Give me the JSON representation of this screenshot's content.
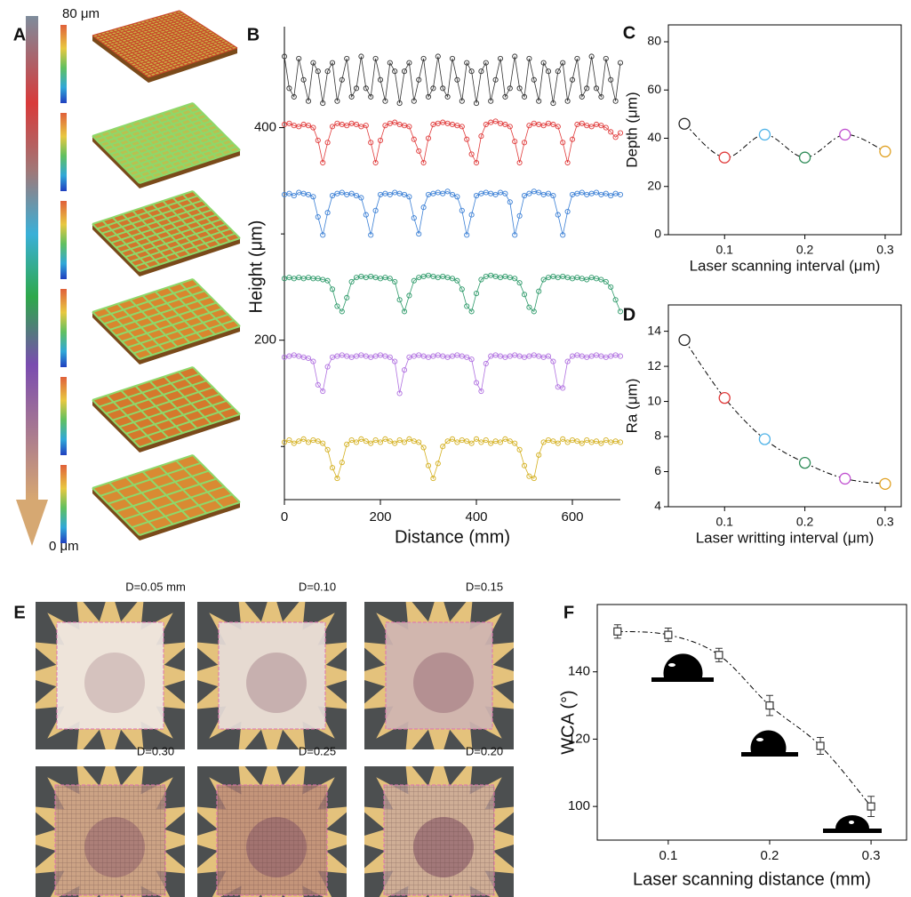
{
  "panel_labels": [
    "A",
    "B",
    "C",
    "D",
    "E",
    "F"
  ],
  "panel_a": {
    "top_label": "80 μm",
    "bottom_label": "0 μm"
  },
  "panel_e": {
    "labels": [
      "D=0.05 mm",
      "D=0.10",
      "D=0.15",
      "D=0.30",
      "D=0.25",
      "D=0.20"
    ]
  },
  "chart_data": [
    {
      "type": "line",
      "markers": "open-circle",
      "xlabel": "Distance (mm)",
      "ylabel": "Height (μm)",
      "x": [
        0,
        10,
        20,
        30,
        40,
        50,
        60,
        70,
        80,
        90,
        100,
        110,
        120,
        130,
        140,
        150,
        160,
        170,
        180,
        190,
        200,
        210,
        220,
        230,
        240,
        250,
        260,
        270,
        280,
        290,
        300,
        310,
        320,
        330,
        340,
        350,
        360,
        370,
        380,
        390,
        400,
        410,
        420,
        430,
        440,
        450,
        460,
        470,
        480,
        490,
        500,
        510,
        520,
        530,
        540,
        550,
        560,
        570,
        580,
        590,
        600,
        610,
        620,
        630,
        640,
        650,
        660,
        670,
        680,
        690,
        700
      ],
      "series": [
        {
          "color": "#333333",
          "values": [
            467,
            437,
            429,
            465,
            445,
            425,
            461,
            453,
            423,
            453,
            461,
            425,
            445,
            465,
            429,
            437,
            467,
            437,
            429,
            465,
            445,
            425,
            461,
            453,
            423,
            453,
            461,
            425,
            445,
            465,
            429,
            437,
            467,
            437,
            429,
            465,
            445,
            425,
            461,
            453,
            423,
            453,
            461,
            425,
            445,
            465,
            429,
            437,
            467,
            437,
            429,
            465,
            445,
            425,
            461,
            453,
            423,
            453,
            461,
            425,
            445,
            465,
            429,
            437,
            467,
            437,
            429,
            465,
            445,
            425,
            461
          ]
        },
        {
          "color": "#e03a3a",
          "values": [
            403,
            404,
            402,
            401,
            403,
            402,
            400,
            388,
            367,
            386,
            401,
            404,
            403,
            402,
            404,
            403,
            401,
            402,
            386,
            367,
            388,
            402,
            404,
            405,
            403,
            402,
            401,
            389,
            378,
            367,
            390,
            403,
            404,
            405,
            404,
            403,
            402,
            401,
            389,
            375,
            367,
            392,
            403,
            405,
            406,
            404,
            403,
            401,
            387,
            367,
            386,
            402,
            404,
            403,
            402,
            404,
            403,
            401,
            386,
            367,
            389,
            403,
            404,
            402,
            401,
            403,
            402,
            400,
            396,
            391,
            395
          ]
        },
        {
          "color": "#3a7fd5",
          "values": [
            337,
            338,
            336,
            339,
            338,
            337,
            335,
            316,
            299,
            320,
            336,
            338,
            339,
            337,
            338,
            336,
            334,
            318,
            299,
            322,
            337,
            338,
            337,
            339,
            338,
            337,
            335,
            315,
            300,
            325,
            337,
            338,
            339,
            338,
            340,
            337,
            335,
            322,
            299,
            318,
            336,
            338,
            339,
            338,
            337,
            339,
            338,
            330,
            299,
            317,
            336,
            338,
            340,
            339,
            337,
            338,
            336,
            318,
            299,
            321,
            337,
            338,
            339,
            337,
            338,
            339,
            337,
            338,
            336,
            338,
            337
          ]
        },
        {
          "color": "#2e9a6a",
          "values": [
            258,
            259,
            258,
            259,
            258,
            259,
            258,
            258,
            257,
            256,
            248,
            232,
            227,
            240,
            255,
            259,
            260,
            259,
            260,
            259,
            258,
            259,
            258,
            255,
            238,
            227,
            242,
            256,
            259,
            260,
            261,
            260,
            259,
            260,
            259,
            258,
            256,
            248,
            232,
            227,
            244,
            257,
            260,
            261,
            260,
            259,
            260,
            259,
            258,
            254,
            243,
            231,
            227,
            246,
            257,
            259,
            260,
            259,
            260,
            259,
            258,
            259,
            258,
            257,
            259,
            258,
            257,
            255,
            250,
            238,
            227
          ]
        },
        {
          "color": "#b070e0",
          "values": [
            184,
            185,
            186,
            185,
            184,
            183,
            180,
            158,
            152,
            175,
            184,
            185,
            186,
            185,
            184,
            185,
            186,
            185,
            184,
            185,
            186,
            185,
            184,
            180,
            150,
            172,
            184,
            185,
            186,
            185,
            184,
            185,
            186,
            185,
            184,
            185,
            186,
            185,
            184,
            182,
            160,
            152,
            178,
            185,
            186,
            185,
            184,
            185,
            186,
            185,
            184,
            185,
            186,
            185,
            184,
            185,
            180,
            156,
            155,
            180,
            185,
            186,
            185,
            184,
            185,
            186,
            185,
            184,
            185,
            186,
            185
          ]
        },
        {
          "color": "#d4b020",
          "values": [
            104,
            106,
            103,
            105,
            107,
            104,
            106,
            105,
            103,
            97,
            80,
            70,
            85,
            102,
            106,
            104,
            107,
            105,
            103,
            106,
            104,
            107,
            105,
            103,
            106,
            104,
            107,
            105,
            104,
            99,
            82,
            70,
            84,
            100,
            105,
            107,
            104,
            106,
            105,
            103,
            107,
            104,
            106,
            103,
            105,
            104,
            107,
            105,
            103,
            97,
            82,
            72,
            70,
            92,
            104,
            106,
            105,
            103,
            107,
            104,
            106,
            105,
            103,
            106,
            104,
            105,
            103,
            106,
            104,
            105,
            104
          ]
        }
      ],
      "xlim": [
        0,
        700
      ],
      "ylim": [
        50,
        495
      ],
      "xticks": [
        0,
        200,
        400,
        600
      ],
      "yticks": [
        200,
        400
      ],
      "yminorticks": [
        100,
        300
      ]
    },
    {
      "type": "scatter",
      "marker": "circle",
      "xlabel": "Laser scanning interval (μm)",
      "ylabel": "Depth (μm)",
      "x": [
        0.05,
        0.1,
        0.15,
        0.2,
        0.25,
        0.3
      ],
      "values": [
        46,
        32,
        41.5,
        32,
        41.5,
        34.5
      ],
      "colors": [
        "#222222",
        "#e03a3a",
        "#4fb3e8",
        "#2e8b57",
        "#c050d0",
        "#e0a020"
      ],
      "xlim": [
        0.03,
        0.32
      ],
      "ylim": [
        0,
        87
      ],
      "xticks": [
        0.1,
        0.2,
        0.3
      ],
      "yticks": [
        0,
        20,
        40,
        60,
        80
      ]
    },
    {
      "type": "scatter",
      "marker": "circle",
      "xlabel": "Laser writting interval (μm)",
      "ylabel": "Ra (μm)",
      "x": [
        0.05,
        0.1,
        0.15,
        0.2,
        0.25,
        0.3
      ],
      "values": [
        13.5,
        10.2,
        7.85,
        6.5,
        5.6,
        5.3
      ],
      "colors": [
        "#222222",
        "#e03a3a",
        "#4fb3e8",
        "#2e8b57",
        "#c050d0",
        "#e0a020"
      ],
      "xlim": [
        0.03,
        0.32
      ],
      "ylim": [
        4,
        15.5
      ],
      "xticks": [
        0.1,
        0.2,
        0.3
      ],
      "yticks": [
        4,
        6,
        8,
        10,
        12,
        14
      ]
    },
    {
      "type": "scatter",
      "marker": "square",
      "xlabel": "Laser scanning distance (mm)",
      "ylabel": "WCA (°)",
      "x": [
        0.05,
        0.1,
        0.15,
        0.2,
        0.25,
        0.3
      ],
      "values": [
        152,
        151,
        145,
        130,
        118,
        100
      ],
      "errors": [
        2,
        2,
        2,
        3,
        2.5,
        3
      ],
      "color": "#333333",
      "xlim": [
        0.03,
        0.335
      ],
      "ylim": [
        90,
        160
      ],
      "xticks": [
        0.1,
        0.2,
        0.3
      ],
      "yticks": [
        100,
        120,
        140
      ]
    }
  ]
}
